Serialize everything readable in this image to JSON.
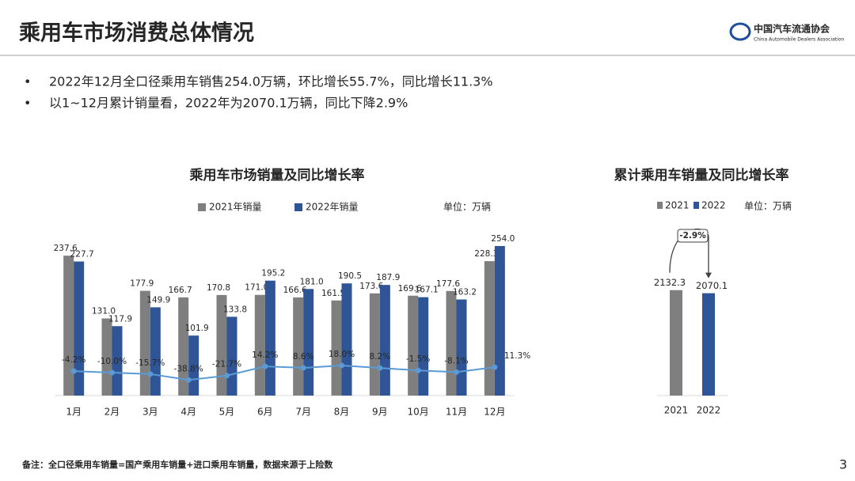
{
  "header": {
    "title": "乘用车市场消费总体情况",
    "logo_cn": "中国汽车流通协会",
    "logo_en": "China Automobile Dealers Association"
  },
  "bullets": [
    "2022年12月全口径乘用车销售254.0万辆，环比增长55.7%，同比增长11.3%",
    "以1~12月累计销量看，2022年为2070.1万辆，同比下降2.9%"
  ],
  "chart_data": [
    {
      "type": "bar",
      "title": "乘用车市场销量及同比增长率",
      "unit": "单位：万辆",
      "categories": [
        "1月",
        "2月",
        "3月",
        "4月",
        "5月",
        "6月",
        "7月",
        "8月",
        "9月",
        "10月",
        "11月",
        "12月"
      ],
      "ylim": [
        0,
        260
      ],
      "y2lim": [
        -100,
        500
      ],
      "series": [
        {
          "name": "2021年销量",
          "color": "#7f7f7f",
          "values": [
            237.6,
            131.0,
            177.9,
            166.7,
            170.8,
            171.0,
            166.6,
            161.5,
            173.6,
            169.6,
            177.6,
            228.3
          ],
          "value_labels": [
            "237.6",
            "131.0",
            "177.9",
            "166.7",
            "170.8",
            "171.0",
            "166.6",
            "161.5",
            "173.6",
            "169.6",
            "177.6",
            "228.3"
          ]
        },
        {
          "name": "2022年销量",
          "color": "#2f5597",
          "values": [
            227.7,
            117.9,
            149.9,
            101.9,
            133.8,
            195.2,
            181.0,
            190.5,
            187.9,
            167.1,
            163.2,
            254.0
          ],
          "value_labels": [
            "227.7",
            "117.9",
            "149.9",
            "101.9",
            "133.8",
            "195.2",
            "181.0",
            "190.5",
            "187.9",
            "167.1",
            "163.2",
            "254.0"
          ]
        },
        {
          "type": "line",
          "axis": "y2",
          "color": "#5b9bd5",
          "values": [
            -4.2,
            -10.0,
            -15.7,
            -38.8,
            -21.7,
            14.2,
            8.6,
            18.0,
            8.2,
            -1.5,
            -8.1,
            11.3
          ],
          "value_labels": [
            "-4.2%",
            "-10.0%",
            "-15.7%",
            "-38.8%",
            "-21.7%",
            "14.2%",
            "8.6%",
            "18.0%",
            "8.2%",
            "-1.5%",
            "-8.1%",
            "11.3%"
          ]
        }
      ]
    },
    {
      "type": "bar",
      "title": "累计乘用车销量及同比增长率",
      "unit": "单位：万辆",
      "categories": [
        "2021",
        "2022"
      ],
      "values": [
        2132.3,
        2070.1
      ],
      "value_labels": [
        "2132.3",
        "2070.1"
      ],
      "colors": [
        "#7f7f7f",
        "#2f5597"
      ],
      "ylim": [
        0,
        3200
      ],
      "annotation": "-2.9%"
    }
  ],
  "footnote": "备注：全口径乘用车销量=国产乘用车销量+进口乘用车销量，数据来源于上险数",
  "page_number": "3"
}
